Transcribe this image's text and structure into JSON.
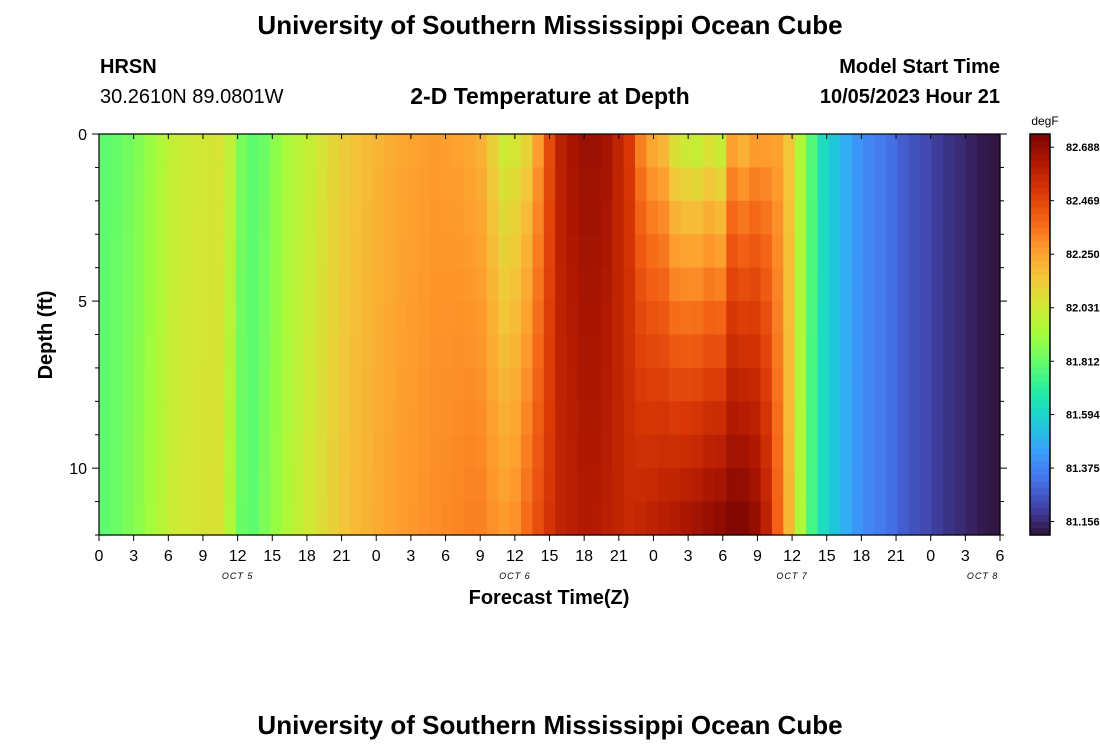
{
  "title": "University of Southern Mississippi Ocean Cube",
  "footer_title": "University of Southern Mississippi Ocean Cube",
  "station": {
    "name": "HRSN",
    "coords": "30.2610N  89.0801W"
  },
  "model": {
    "label": "Model Start Time",
    "value": "10/05/2023 Hour 21"
  },
  "chart_title": "2-D Temperature at Depth",
  "colors": {
    "scale": [
      "#30123b",
      "#4145ab",
      "#4675ed",
      "#39a2fc",
      "#1bcfd4",
      "#24eca6",
      "#61fc6c",
      "#a4fc3b",
      "#d1e834",
      "#f3c63a",
      "#fe9b2d",
      "#f36315",
      "#d93806",
      "#b11901",
      "#7a0403"
    ]
  },
  "chart_data": {
    "type": "heatmap",
    "xlabel": "Forecast Time(Z)",
    "ylabel": "Depth (ft)",
    "ylim": [
      0,
      12
    ],
    "y_ticks": [
      "0",
      "5",
      "10"
    ],
    "x_tick_labels": [
      "0",
      "3",
      "6",
      "9",
      "12",
      "15",
      "18",
      "21",
      "0",
      "3",
      "6",
      "9",
      "12",
      "15",
      "18",
      "21",
      "0",
      "3",
      "6",
      "9",
      "12",
      "15",
      "18",
      "21",
      "0",
      "3",
      "6"
    ],
    "day_labels": [
      "OCT 5",
      "OCT 6",
      "OCT 7",
      "OCT 8"
    ],
    "colorbar": {
      "unit": "degF",
      "labels": [
        "82.688",
        "82.469",
        "82.250",
        "82.031",
        "81.812",
        "81.594",
        "81.375",
        "81.156"
      ],
      "range": [
        81.101,
        82.742
      ]
    },
    "x_hours": [
      0,
      1,
      2,
      3,
      4,
      5,
      6,
      7,
      8,
      9,
      10,
      11,
      12,
      13,
      14,
      15,
      16,
      17,
      18,
      19,
      20,
      21,
      22,
      23,
      24,
      25,
      26,
      27,
      28,
      29,
      30,
      31,
      32,
      33,
      34,
      35,
      36,
      37,
      38,
      39,
      40,
      41,
      42,
      43,
      44,
      45,
      46,
      47,
      48,
      49,
      50,
      51,
      52,
      53,
      54,
      55,
      56,
      57,
      58,
      59,
      60,
      61,
      62,
      63,
      64,
      65,
      66,
      67,
      68,
      69,
      70,
      71,
      72,
      73,
      74,
      75,
      76,
      77,
      78
    ],
    "surface_temp_degF": [
      81.8,
      81.81,
      81.83,
      81.86,
      81.9,
      81.95,
      82.0,
      82.02,
      82.03,
      82.04,
      82.05,
      82.0,
      81.85,
      81.8,
      81.82,
      81.88,
      81.93,
      81.97,
      82.0,
      82.05,
      82.1,
      82.13,
      82.16,
      82.18,
      82.2,
      82.22,
      82.24,
      82.25,
      82.26,
      82.27,
      82.26,
      82.25,
      82.23,
      82.2,
      82.1,
      82.0,
      82.02,
      82.08,
      82.25,
      82.45,
      82.6,
      82.65,
      82.68,
      82.68,
      82.66,
      82.58,
      82.5,
      82.3,
      82.2,
      82.15,
      82.0,
      81.95,
      81.93,
      81.98,
      81.93,
      82.2,
      82.15,
      82.22,
      82.23,
      82.24,
      82.15,
      81.95,
      81.78,
      81.62,
      81.55,
      81.48,
      81.42,
      81.38,
      81.35,
      81.32,
      81.28,
      81.25,
      81.23,
      81.2,
      81.18,
      81.16,
      81.14,
      81.12,
      81.11
    ],
    "bottom_temp_degF": [
      81.8,
      81.82,
      81.85,
      81.88,
      81.92,
      81.97,
      82.02,
      82.04,
      82.05,
      82.06,
      82.06,
      81.95,
      81.82,
      81.8,
      81.85,
      81.9,
      81.95,
      82.0,
      82.04,
      82.08,
      82.12,
      82.16,
      82.19,
      82.21,
      82.23,
      82.25,
      82.27,
      82.28,
      82.29,
      82.3,
      82.31,
      82.32,
      82.33,
      82.33,
      82.3,
      82.28,
      82.3,
      82.38,
      82.45,
      82.52,
      82.58,
      82.6,
      82.62,
      82.62,
      82.6,
      82.58,
      82.56,
      82.58,
      82.6,
      82.62,
      82.64,
      82.66,
      82.68,
      82.7,
      82.72,
      82.74,
      82.74,
      82.7,
      82.6,
      82.4,
      82.2,
      81.95,
      81.75,
      81.62,
      81.55,
      81.48,
      81.42,
      81.38,
      81.35,
      81.32,
      81.28,
      81.25,
      81.23,
      81.2,
      81.18,
      81.16,
      81.14,
      81.12,
      81.11
    ]
  }
}
